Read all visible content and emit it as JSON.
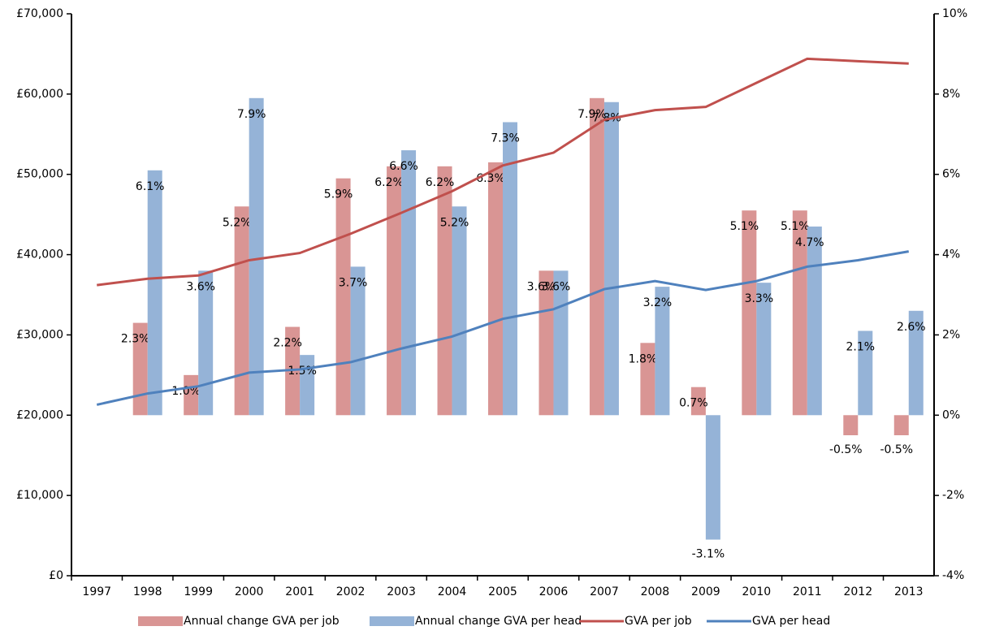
{
  "chart_data": {
    "type": "bar",
    "categories": [
      "1997",
      "1998",
      "1999",
      "2000",
      "2001",
      "2002",
      "2003",
      "2004",
      "2005",
      "2006",
      "2007",
      "2008",
      "2009",
      "2010",
      "2011",
      "2012",
      "2013"
    ],
    "series": [
      {
        "name": "Annual change GVA per job",
        "type": "bar",
        "axis": "y2",
        "color": "#d99594",
        "values": [
          null,
          2.3,
          1.0,
          5.2,
          2.2,
          5.9,
          6.2,
          6.2,
          6.3,
          3.6,
          7.9,
          1.8,
          0.7,
          5.1,
          5.1,
          -0.5,
          -0.5
        ],
        "value_labels": [
          null,
          "2.3%",
          "1.0%",
          "5.2%",
          "2.2%",
          "5.9%",
          "6.2%",
          "6.2%",
          "6.3%",
          "3.6%",
          "7.9%",
          "1.8%",
          "0.7%",
          "5.1%",
          "5.1%",
          "-0.5%",
          "-0.5%"
        ]
      },
      {
        "name": "Annual change GVA per head",
        "type": "bar",
        "axis": "y2",
        "color": "#95b3d7",
        "values": [
          null,
          6.1,
          3.6,
          7.9,
          1.5,
          3.7,
          6.6,
          5.2,
          7.3,
          3.6,
          7.8,
          3.2,
          -3.1,
          3.3,
          4.7,
          2.1,
          2.6
        ],
        "value_labels": [
          null,
          "6.1%",
          "3.6%",
          "7.9%",
          "1.5%",
          "3.7%",
          "6.6%",
          "5.2%",
          "7.3%",
          "3.6%",
          "7.8%",
          "3.2%",
          "-3.1%",
          "3.3%",
          "4.7%",
          "2.1%",
          "2.6%"
        ]
      },
      {
        "name": "GVA per job",
        "type": "line",
        "color": "#c0504d",
        "values": [
          36200,
          37000,
          37400,
          39300,
          40200,
          42600,
          45200,
          47900,
          51100,
          52700,
          56800,
          58000,
          58400,
          61400,
          64400,
          64100,
          63800
        ]
      },
      {
        "name": "GVA per head",
        "type": "line",
        "color": "#4f81bd",
        "values": [
          21300,
          22700,
          23600,
          25300,
          25700,
          26600,
          28300,
          29800,
          32000,
          33200,
          35700,
          36700,
          35600,
          36700,
          38500,
          39300,
          40400
        ]
      }
    ],
    "ylim": [
      0,
      70000
    ],
    "yticks": [
      {
        "value": 0,
        "label": "£0"
      },
      {
        "value": 10000,
        "label": "£10,000"
      },
      {
        "value": 20000,
        "label": "£20,000"
      },
      {
        "value": 30000,
        "label": "£30,000"
      },
      {
        "value": 40000,
        "label": "£40,000"
      },
      {
        "value": 50000,
        "label": "£50,000"
      },
      {
        "value": 60000,
        "label": "£60,000"
      },
      {
        "value": 70000,
        "label": "£70,000"
      }
    ],
    "y2lim": [
      -4,
      10
    ],
    "y2ticks": [
      {
        "value": -4,
        "label": "-4%"
      },
      {
        "value": -2,
        "label": "-2%"
      },
      {
        "value": 0,
        "label": "0%"
      },
      {
        "value": 2,
        "label": "2%"
      },
      {
        "value": 4,
        "label": "4%"
      },
      {
        "value": 6,
        "label": "6%"
      },
      {
        "value": 8,
        "label": "8%"
      },
      {
        "value": 10,
        "label": "10%"
      }
    ],
    "legend": "bottom",
    "grid": false
  }
}
